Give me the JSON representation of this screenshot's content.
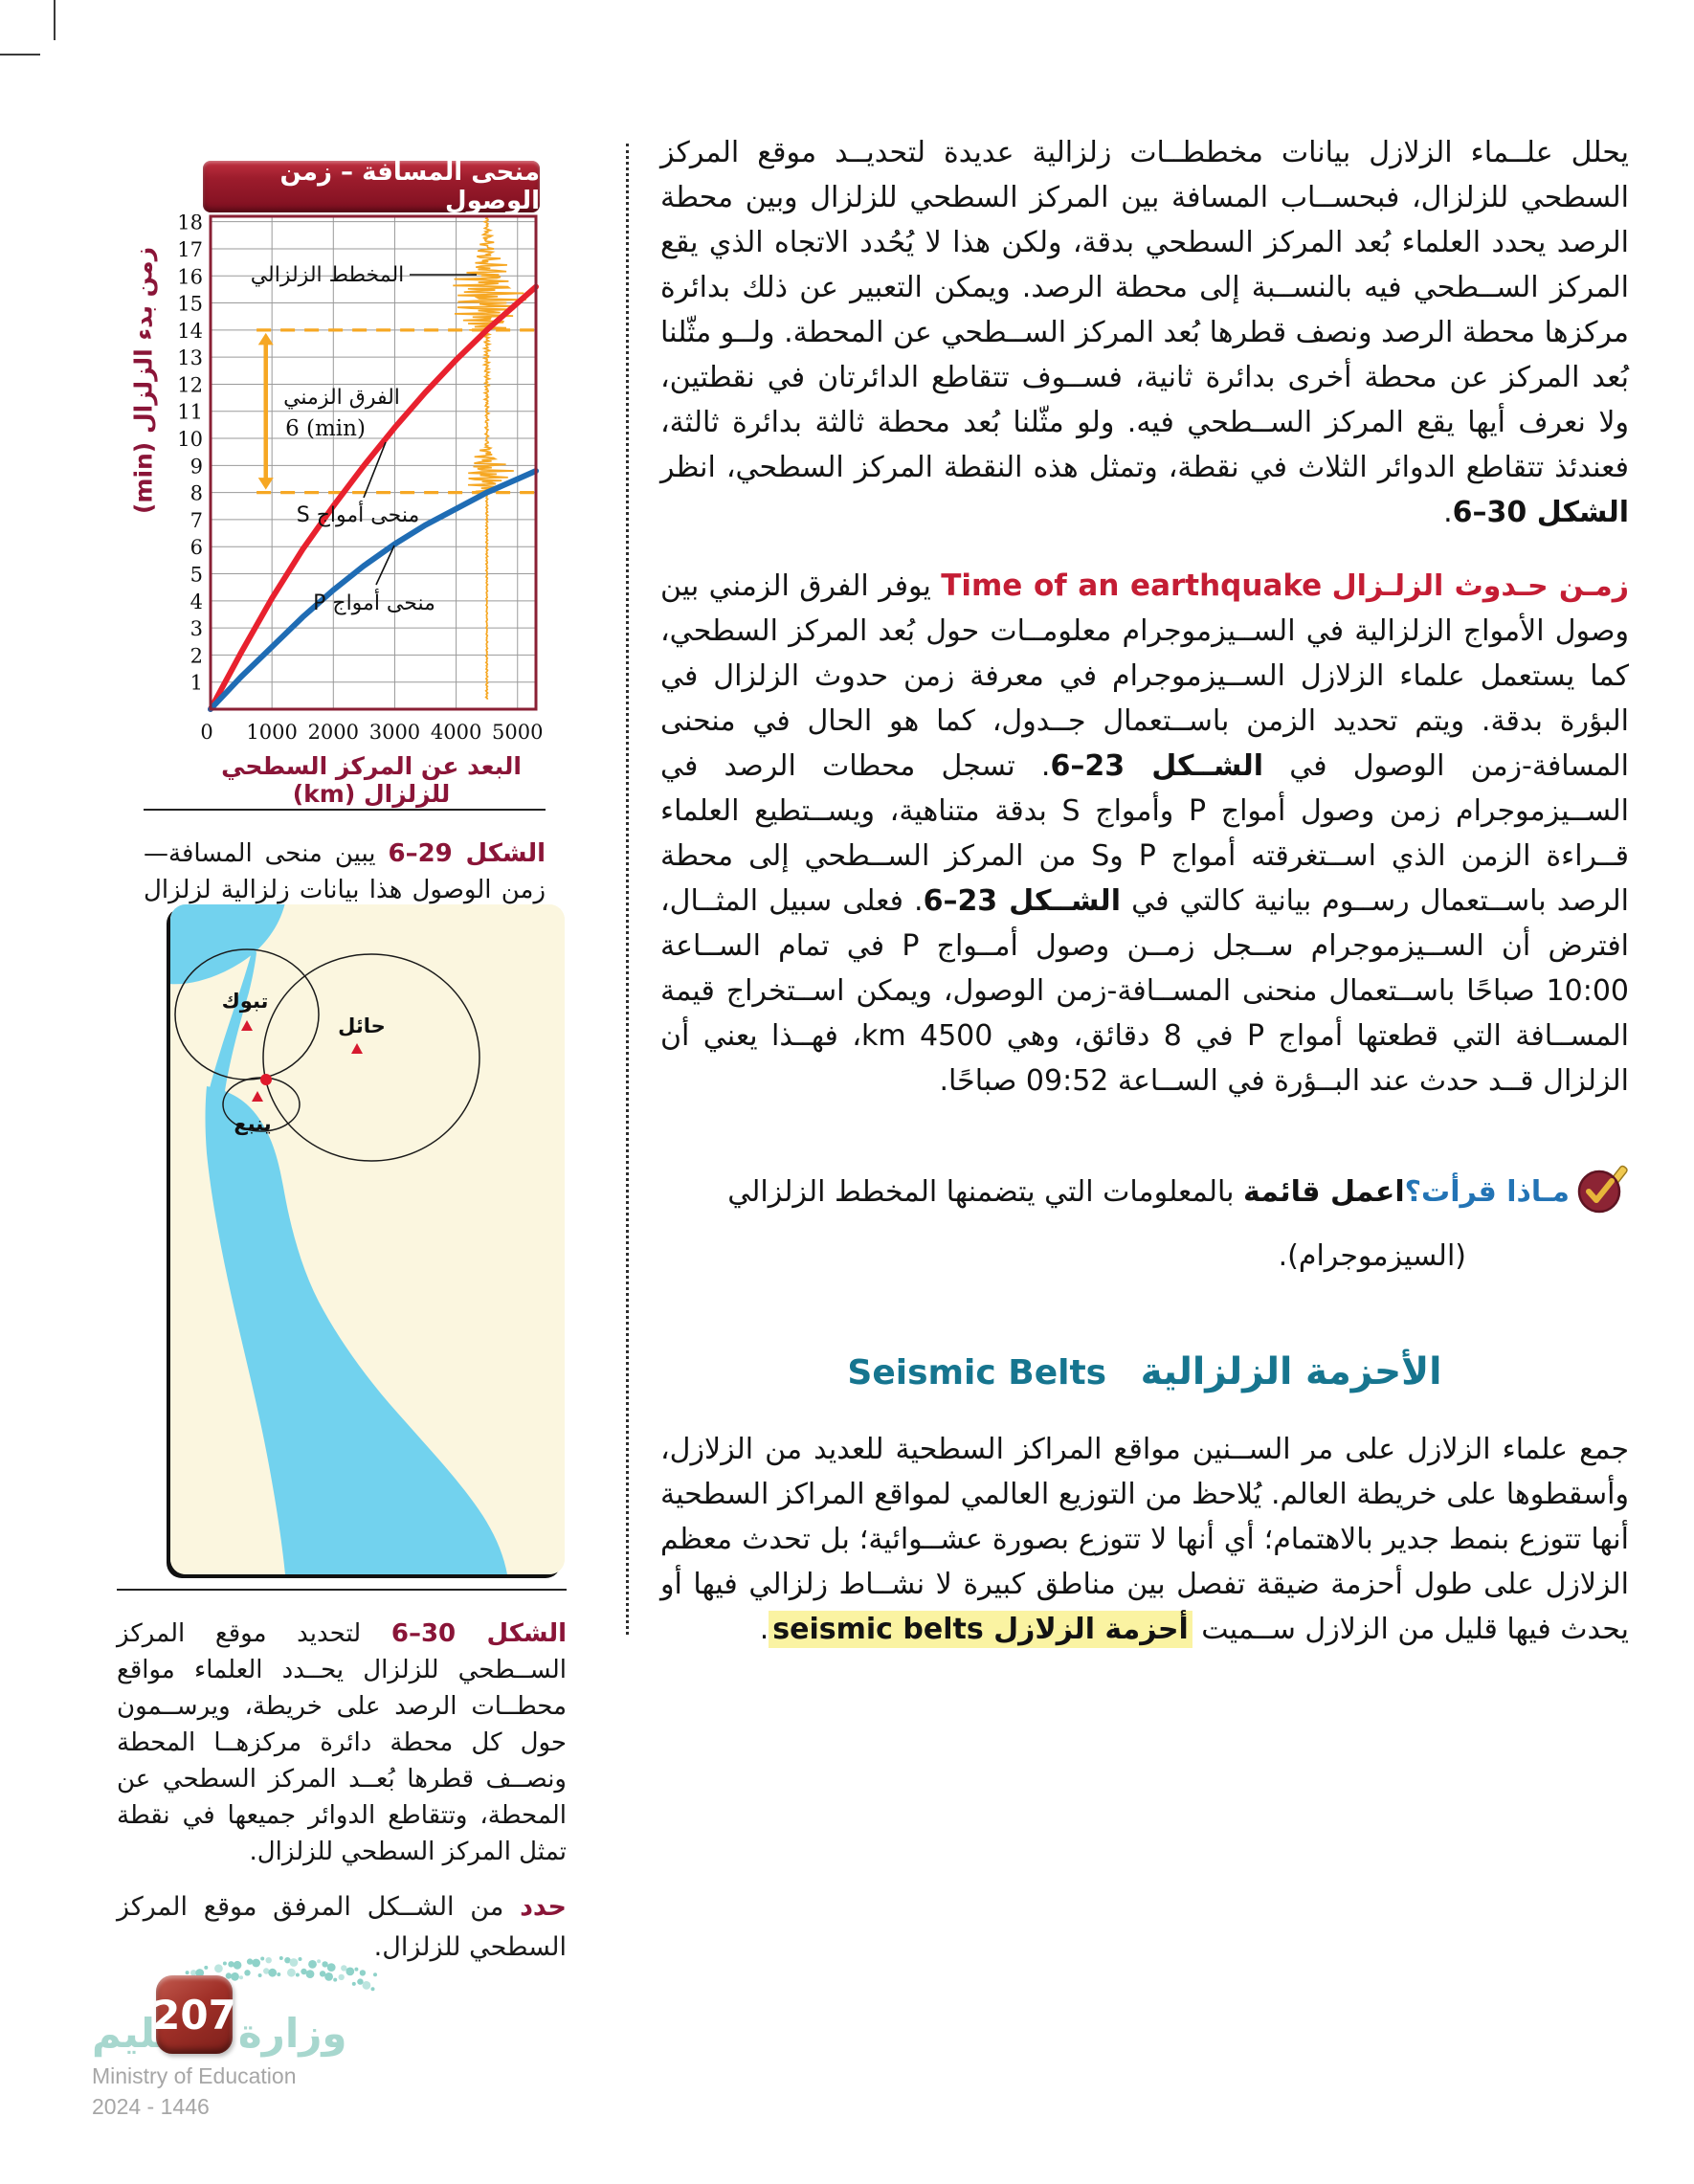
{
  "page": {
    "number": "207",
    "ministry_ar": "وزارة التعليم",
    "ministry_en": "Ministry of Education",
    "years": "2024 - 1446"
  },
  "chart_data": {
    "type": "line",
    "title": "منحى المسافة – زمن الوصول",
    "xlabel": "البعد عن المركز السطحي للزلزال (km)",
    "ylabel": "زمن بدء الزلزال (min)",
    "xlim": [
      0,
      5300
    ],
    "ylim": [
      0,
      18.2
    ],
    "x_ticks": [
      0,
      1000,
      2000,
      3000,
      4000,
      5000
    ],
    "y_ticks": [
      1,
      2,
      3,
      4,
      5,
      6,
      7,
      8,
      9,
      10,
      11,
      12,
      13,
      14,
      15,
      16,
      17,
      18
    ],
    "grid": true,
    "series": [
      {
        "name": "منحى أمواج S",
        "color": "#e8212e",
        "points": [
          [
            0,
            0
          ],
          [
            500,
            2.1
          ],
          [
            1000,
            4.1
          ],
          [
            1500,
            5.9
          ],
          [
            2000,
            7.5
          ],
          [
            2500,
            9.0
          ],
          [
            3000,
            10.4
          ],
          [
            3500,
            11.7
          ],
          [
            4000,
            12.9
          ],
          [
            4500,
            14.0
          ],
          [
            5000,
            15.0
          ],
          [
            5300,
            15.6
          ]
        ]
      },
      {
        "name": "منحى أمواج P",
        "color": "#1f6cb4",
        "points": [
          [
            0,
            0
          ],
          [
            500,
            1.2
          ],
          [
            1000,
            2.3
          ],
          [
            1500,
            3.4
          ],
          [
            2000,
            4.4
          ],
          [
            2500,
            5.3
          ],
          [
            3000,
            6.1
          ],
          [
            3500,
            6.8
          ],
          [
            4000,
            7.4
          ],
          [
            4500,
            8.0
          ],
          [
            5000,
            8.5
          ],
          [
            5300,
            8.8
          ]
        ]
      }
    ],
    "annotations": {
      "seismogram_label": "المخطط الزلزالي",
      "seismogram_x_km": 4500,
      "dashed_y": [
        14,
        8
      ],
      "arrow_x_km": 900,
      "time_diff_label": "الفرق الزمني",
      "time_diff_value_label": "6 (min)",
      "p_arrival_min": 8,
      "s_arrival_min": 14
    }
  },
  "left": {
    "fig29": {
      "ref": "الشكل 29–6",
      "text": " يبين منحى المسافة—زمن الوصول هذا بيانات زلزالية لزلزال ما."
    },
    "map": {
      "stations": [
        {
          "name": "تبوك"
        },
        {
          "name": "حائل"
        },
        {
          "name": "ينبع"
        }
      ]
    },
    "fig30": {
      "ref": "الشكل 30–6",
      "text": " لتحديد موقع المركز الســطحي للزلزال يحــدد العلماء مواقع محطــات الرصد على خريطة، ويرســمون حول كل محطة دائرة مركزهــا المحطة ونصــف قطرها بُعــد المركز السطحي عن المحطة، وتتقاطع الدوائر جميعها في نقطة تمثل المركز السطحي للزلزال."
    },
    "task": {
      "verb": "حدد",
      "text": " من الشــكل المرفق موقع المركز السطحي للزلزال."
    }
  },
  "right": {
    "para1": {
      "text": "يحلل علــماء الزلازل بيانات مخططــات زلزالية عديدة لتحديــد موقع المركز السطحي للزلزال، فبحســاب المسافة بين المركز السطحي للزلزال وبين محطة الرصد يحدد العلماء بُعد المركز السطحي بدقة، ولكن هذا لا يُحُدد الاتجاه الذي يقع المركز الســطحي فيه بالنســبة إلى محطة الرصد. ويمكن التعبير عن ذلك بدائرة مركزها محطة الرصد ونصف قطرها بُعد المركز الســطحي عن المحطة. ولــو مثّلنا بُعد المركز عن محطة أخرى بدائرة ثانية، فســوف تتقاطع الدائرتان في نقطتين، ولا نعرف أيها يقع المركز الســطحي فيه. ولو مثّلنا بُعد محطة ثالثة بدائرة ثالثة، فعندئذ تتقاطع الدوائر الثلاث في نقطة، وتمثل هذه النقطة المركز السطحي، انظر ",
      "ref": "الشكل 30–6",
      "dot": "."
    },
    "time_section": {
      "heading_ar": "زمـن حـدوث الزلـزال",
      "heading_en": "Time of an earthquake",
      "body1": " يوفر الفرق الزمني بين وصول الأمواج الزلزالية في الســيزموجرام معلومــات حول بُعد المركز السطحي، كما يستعمل علماء الزلازل الســيزموجرام في معرفة زمن حدوث الزلزال في البؤرة بدقة. ويتم تحديد الزمن باســتعمال جــدول، كما هو الحال في منحنى المسافة-زمن الوصول في ",
      "fig_ref1": "الشــكل 23–6",
      "body2": ". تسجل محطات الرصد في الســيزموجرام زمن وصول أمواج P وأمواج S بدقة متناهية، ويســتطيع العلماء قــراءة الزمن الذي اســتغرقته أمواج P وS من المركز الســطحي إلى محطة الرصد باســتعمال رســوم بيانية كالتي في ",
      "fig_ref2": "الشــكل 23–6",
      "body3": ". فعلى سبيل المثــال، افترض أن الســيزموجرام ســجل زمــن وصول أمــواج P في تمام الســاعة 10:00 صباحًا باســتعمال منحنى المســافة-زمن الوصول، ويمكن اســتخراج قيمة المســافة التي قطعتها أمواج P في 8 دقائق، وهي 4500 km، فهــذا يعني أن الزلزال قــد حدث عند البــؤرة في الســاعة 09:52 صباحًا."
    },
    "reading_check": {
      "label": "مـاذا قرأت؟",
      "action": "اعمل قائمة",
      "text": " بالمعلومات التي يتضمنها المخطط الزلزالي",
      "line2": "(السيزموجرام)."
    },
    "belts_section": {
      "heading_ar": "الأحزمة الزلزالية",
      "heading_en": "Seismic Belts",
      "body": "جمع علماء الزلازل على مر الســنين مواقع المراكز السطحية للعديد من الزلازل، وأسقطوها على خريطة العالم. يُلاحظ من التوزيع العالمي لمواقع المراكز السطحية أنها تتوزع بنمط جدير بالاهتمام؛ أي أنها لا تتوزع بصورة عشــوائية؛ بل تحدث معظم الزلازل على طول أحزمة ضيقة تفصل بين مناطق كبيرة لا نشــاط زلزالي فيها أو يحدث فيها قليل من الزلازل ســميت ",
      "highlight": "أحزمة الزلازل seismic belts",
      "period": "."
    }
  }
}
